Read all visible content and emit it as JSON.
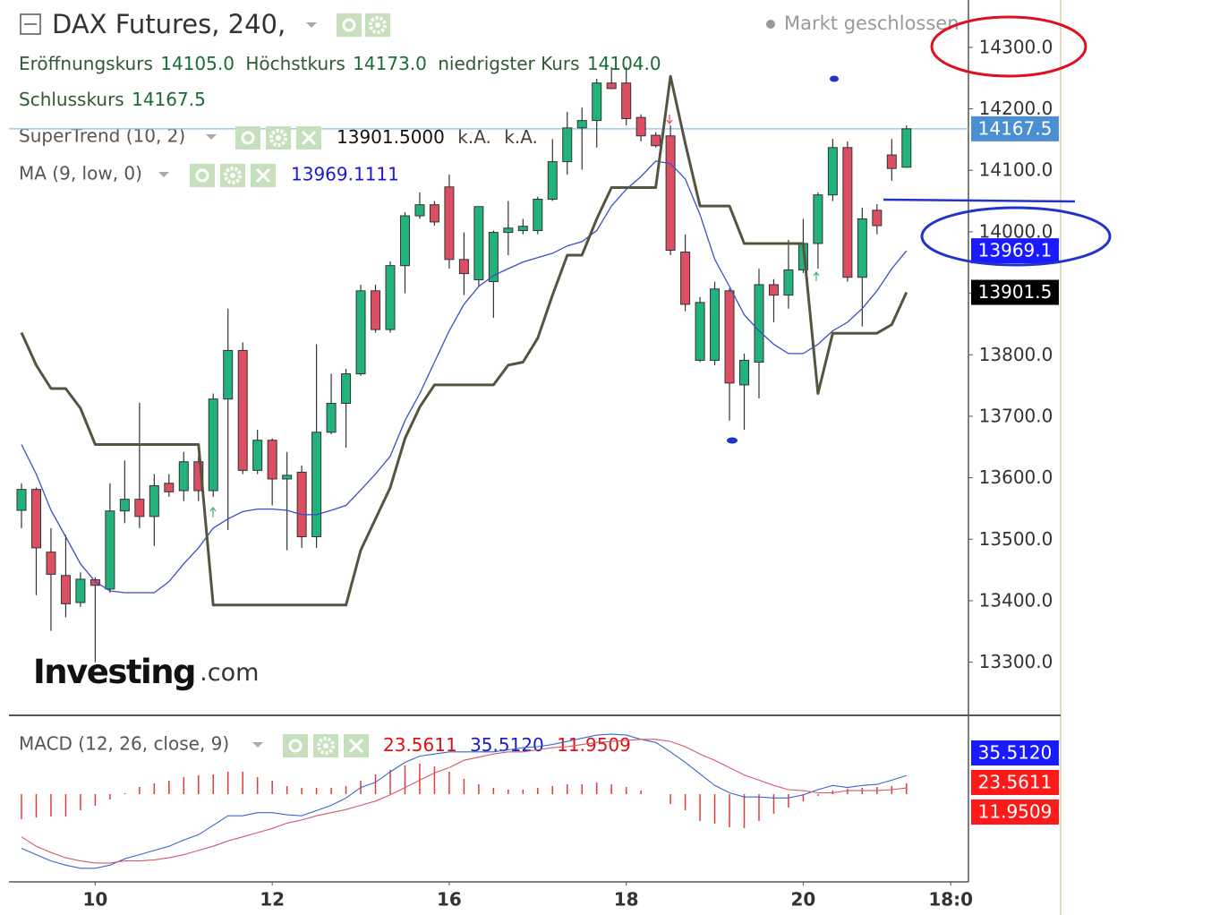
{
  "chart_data": {
    "type": "candlestick",
    "title": "DAX Futures, 240,",
    "status": "Markt geschlossen",
    "watermark": {
      "brand": "Investing",
      "suffix": ".com"
    },
    "ohlc_info": [
      {
        "name": "Eröffnungskurs",
        "value": 14105,
        "label": "14105.0"
      },
      {
        "name": "Höchstkurs",
        "value": 14173,
        "label": "14173.0"
      },
      {
        "name": "niedrigster Kurs",
        "value": 14104,
        "label": "14104.0"
      },
      {
        "name": "Schlusskurs",
        "value": 14167.5
      }
    ],
    "x": [
      0,
      1,
      2,
      3,
      4,
      5,
      6,
      7,
      8,
      9,
      10,
      11,
      12,
      13,
      14,
      15,
      16,
      17,
      18,
      19,
      20,
      21,
      22,
      23,
      24,
      25,
      26,
      27,
      28,
      29,
      30,
      31,
      32,
      33,
      34,
      35,
      36,
      37,
      38,
      39,
      40,
      41,
      42,
      43,
      44,
      45,
      46,
      47,
      48,
      49,
      50,
      51,
      52,
      53,
      54,
      55,
      56,
      57,
      58,
      59,
      60
    ],
    "xlim": [
      -0.85,
      64.2
    ],
    "xticks": [
      {
        "value": 5,
        "label": "10"
      },
      {
        "value": 17,
        "label": "12"
      },
      {
        "value": 29,
        "label": "16"
      },
      {
        "value": 41,
        "label": "18"
      },
      {
        "value": 53,
        "label": "20"
      },
      {
        "value": 63,
        "label": "18:0"
      }
    ],
    "ylim": [
      13215,
      14377
    ],
    "yticks": [
      {
        "value": 13300,
        "label": "13300.0"
      },
      {
        "value": 13400,
        "label": "13400.0"
      },
      {
        "value": 13500,
        "label": "13500.0"
      },
      {
        "value": 13600,
        "label": "13600.0"
      },
      {
        "value": 13700,
        "label": "13700.0"
      },
      {
        "value": 13800,
        "label": "13800.0"
      },
      {
        "value": 13900,
        "label": "13900.0"
      },
      {
        "value": 14000,
        "label": "14000.0"
      },
      {
        "value": 14100,
        "label": "14100.0"
      },
      {
        "value": 14200,
        "label": "14200.0"
      },
      {
        "value": 14300,
        "label": "14300.0"
      }
    ],
    "up_color": "#22b27c",
    "down_color": "#dc4f63",
    "candles": {
      "open": [
        13547,
        13581,
        13479,
        13441,
        13397,
        13434,
        13419,
        13546,
        13565,
        13537,
        13591,
        13579,
        13626,
        13579,
        13728,
        13807,
        13612,
        13661,
        13598,
        13609,
        13504,
        13674,
        13721,
        13769,
        13904,
        13841,
        13945,
        14026,
        14044,
        14073,
        13955,
        13922,
        13919,
        13999,
        14002,
        14002,
        14053,
        14114,
        14169,
        14181,
        14242,
        14242,
        14186,
        14157,
        14156,
        13967,
        13791,
        13791,
        13904,
        13751,
        13788,
        13914,
        13897,
        13938,
        13981,
        14060,
        14137,
        13926,
        14035,
        14125,
        14105
      ],
      "high": [
        13591,
        13584,
        13518,
        13507,
        13446,
        13438,
        13591,
        13628,
        13722,
        13606,
        13606,
        13642,
        13635,
        13737,
        13875,
        13820,
        13678,
        13664,
        13642,
        13620,
        13817,
        13769,
        13777,
        13914,
        13914,
        13952,
        14032,
        14064,
        14050,
        14093,
        13999,
        14041,
        14002,
        14050,
        14021,
        14057,
        14151,
        14195,
        14202,
        14249,
        14268,
        14268,
        14191,
        14162,
        14173,
        13996,
        13894,
        13919,
        13908,
        13802,
        13940,
        13923,
        13987,
        14021,
        14064,
        14151,
        14147,
        14039,
        14045,
        14151,
        14173
      ],
      "low": [
        13518,
        13409,
        13351,
        13373,
        13390,
        13300,
        13413,
        13526,
        13518,
        13489,
        13569,
        13562,
        13562,
        13569,
        13515,
        13606,
        13606,
        13555,
        13482,
        13486,
        13486,
        13671,
        13649,
        13766,
        13836,
        13836,
        13900,
        14021,
        14010,
        13940,
        13897,
        13911,
        13860,
        13962,
        13996,
        13996,
        14050,
        14093,
        14101,
        14137,
        14232,
        14173,
        14147,
        14137,
        13962,
        13871,
        13788,
        13783,
        13693,
        13678,
        13729,
        13853,
        13875,
        13933,
        13940,
        14050,
        13919,
        13846,
        13996,
        14083,
        14104
      ],
      "close": [
        13581,
        13486,
        13443,
        13395,
        13435,
        13425,
        13546,
        13565,
        13537,
        13587,
        13577,
        13626,
        13579,
        13728,
        13807,
        13612,
        13661,
        13598,
        13604,
        13504,
        13674,
        13721,
        13769,
        13904,
        13841,
        13945,
        14026,
        14044,
        14016,
        13955,
        13932,
        14041,
        13999,
        14006,
        14009,
        14053,
        14114,
        14169,
        14181,
        14242,
        14233,
        14184,
        14156,
        14140,
        13970,
        13882,
        13885,
        13907,
        13754,
        13791,
        13914,
        13897,
        13938,
        13981,
        14060,
        14137,
        13926,
        14021,
        14010,
        14103,
        14167.5
      ]
    },
    "last_price": 14167.5,
    "last_price_color": "#4a8fd2",
    "supertrend": {
      "label": "SuperTrend (10, 2)",
      "color": "#55553f",
      "values": [
        13836,
        13783,
        13745,
        13745,
        13713,
        13654,
        13654,
        13654,
        13654,
        13654,
        13654,
        13654,
        13654,
        13393,
        13393,
        13393,
        13393,
        13393,
        13393,
        13393,
        13393,
        13393,
        13393,
        13482,
        13533,
        13584,
        13664,
        13715,
        13751,
        13751,
        13751,
        13751,
        13751,
        13783,
        13788,
        13827,
        13897,
        13962,
        13962,
        14021,
        14072,
        14072,
        14072,
        14072,
        14253,
        14144,
        14042,
        14042,
        14042,
        13981,
        13981,
        13981,
        13981,
        13981,
        13737,
        13835,
        13835,
        13835,
        13835,
        13849,
        13901.5
      ],
      "current": {
        "value": 13901.5,
        "label": "13901.5000"
      },
      "extra": [
        "k.A.",
        "k.A."
      ],
      "axis_value": 13901.5,
      "axis_color": "#000000"
    },
    "ma": {
      "label": "MA (9, low, 0)",
      "color": "#3a4fc4",
      "values": [
        13654,
        13606,
        13547,
        13504,
        13460,
        13431,
        13416,
        13413,
        13413,
        13413,
        13431,
        13460,
        13486,
        13518,
        13533,
        13545,
        13549,
        13549,
        13547,
        13540,
        13540,
        13547,
        13555,
        13580,
        13606,
        13635,
        13693,
        13737,
        13788,
        13839,
        13882,
        13911,
        13929,
        13940,
        13951,
        13958,
        13965,
        13977,
        13984,
        14002,
        14042,
        14069,
        14090,
        14115,
        14111,
        14086,
        14028,
        13955,
        13911,
        13865,
        13839,
        13817,
        13802,
        13802,
        13817,
        13839,
        13853,
        13875,
        13904,
        13940,
        13969.1111
      ],
      "current": 13969.1111,
      "axis_value": 13969.1,
      "axis_color": "#1a1aff"
    },
    "macd": {
      "label": "MACD (12, 26, close, 9)",
      "ylim": [
        -66,
        92
      ],
      "hist_ylim": [
        -98,
        87
      ],
      "lines": [
        {
          "color": "#3a66d0",
          "axis_color": "#1a1aff",
          "values": [
            -34,
            -40,
            -46,
            -50,
            -53,
            -53,
            -50,
            -44,
            -40,
            -36,
            -32,
            -26,
            -21,
            -12,
            -3,
            -3,
            0,
            0,
            -2,
            -3,
            2,
            7,
            14,
            24,
            29,
            39,
            48,
            54,
            56,
            58,
            58,
            58,
            58,
            60,
            62,
            63,
            65,
            68,
            71,
            74,
            75,
            74,
            70,
            67,
            58,
            48,
            37,
            26,
            19,
            15,
            15,
            14,
            14,
            17,
            22,
            26,
            24,
            26,
            27,
            31,
            35.512
          ],
          "current": {
            "value": 35.512,
            "label": "35.5120"
          }
        },
        {
          "color": "#d25a6a",
          "axis_color": "#ff1a1a",
          "values": [
            -23,
            -32,
            -38,
            -43,
            -46,
            -48,
            -48,
            -46,
            -46,
            -45,
            -43,
            -40,
            -36,
            -32,
            -27,
            -23,
            -19,
            -15,
            -10,
            -7,
            -3,
            0,
            3,
            7,
            11,
            17,
            24,
            31,
            38,
            43,
            50,
            53,
            56,
            58,
            58,
            60,
            62,
            63,
            65,
            67,
            68,
            69,
            70,
            70,
            68,
            63,
            56,
            50,
            43,
            36,
            31,
            26,
            22,
            21,
            19,
            19,
            21,
            21,
            21,
            22,
            23.5611
          ],
          "current": {
            "value": 23.5611
          }
        }
      ],
      "histogram": {
        "color": "#e03a3a",
        "axis_color": "#ff1a1a",
        "values": [
          -28,
          -26,
          -25,
          -25,
          -18,
          -13,
          -6,
          1,
          8,
          12,
          15,
          19,
          21,
          22,
          25,
          25,
          19,
          15,
          9,
          7,
          7,
          7,
          9,
          15,
          22,
          27,
          32,
          34,
          31,
          25,
          17,
          11,
          7,
          5,
          5,
          7,
          9,
          11,
          11,
          13,
          11,
          8,
          4,
          0,
          -11,
          -18,
          -30,
          -33,
          -37,
          -38,
          -30,
          -22,
          -15,
          -8,
          -2,
          4,
          6,
          7,
          8,
          9,
          11.9509
        ],
        "current": 11.9509
      }
    }
  }
}
